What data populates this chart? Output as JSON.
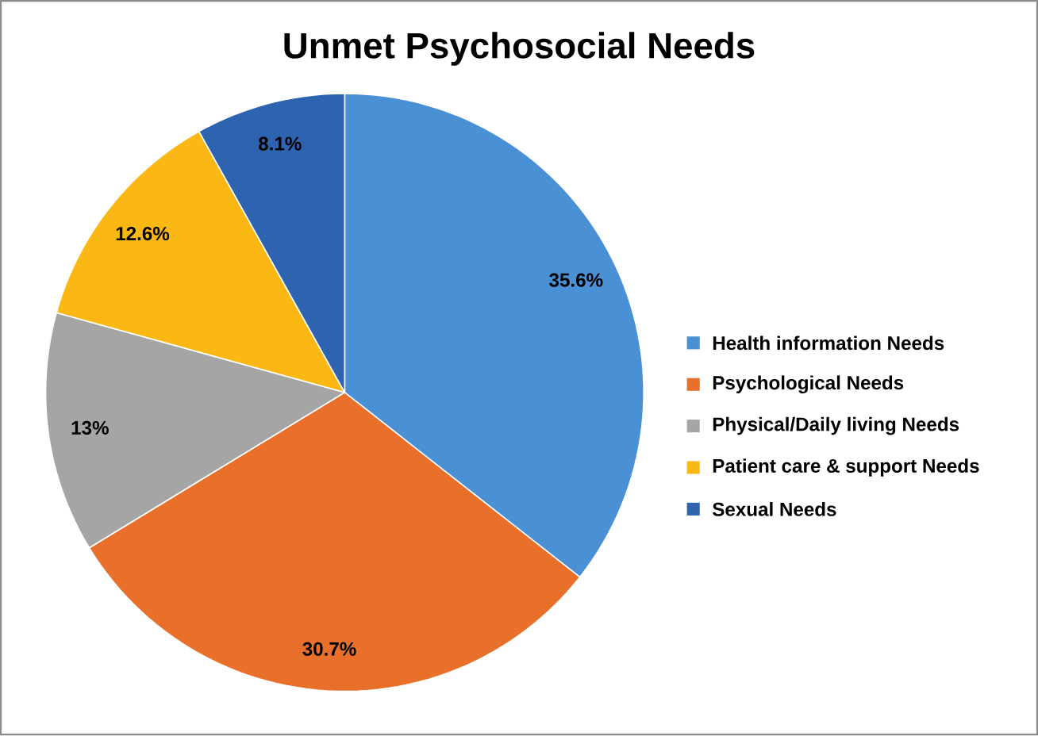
{
  "chart_data": {
    "type": "pie",
    "title": "Unmet Psychosocial Needs",
    "categories": [
      "Health information Needs",
      "Psychological Needs",
      "Physical/Daily living Needs",
      "Patient care & support Needs",
      "Sexual Needs"
    ],
    "values": [
      35.6,
      30.7,
      13,
      12.6,
      8.1
    ],
    "value_labels": [
      "35.6%",
      "30.7%",
      "13%",
      "12.6%",
      "8.1%"
    ],
    "colors": [
      "#4a90d4",
      "#e8702a",
      "#a5a5a5",
      "#fbb814",
      "#2e63b0"
    ],
    "legend": "right"
  }
}
